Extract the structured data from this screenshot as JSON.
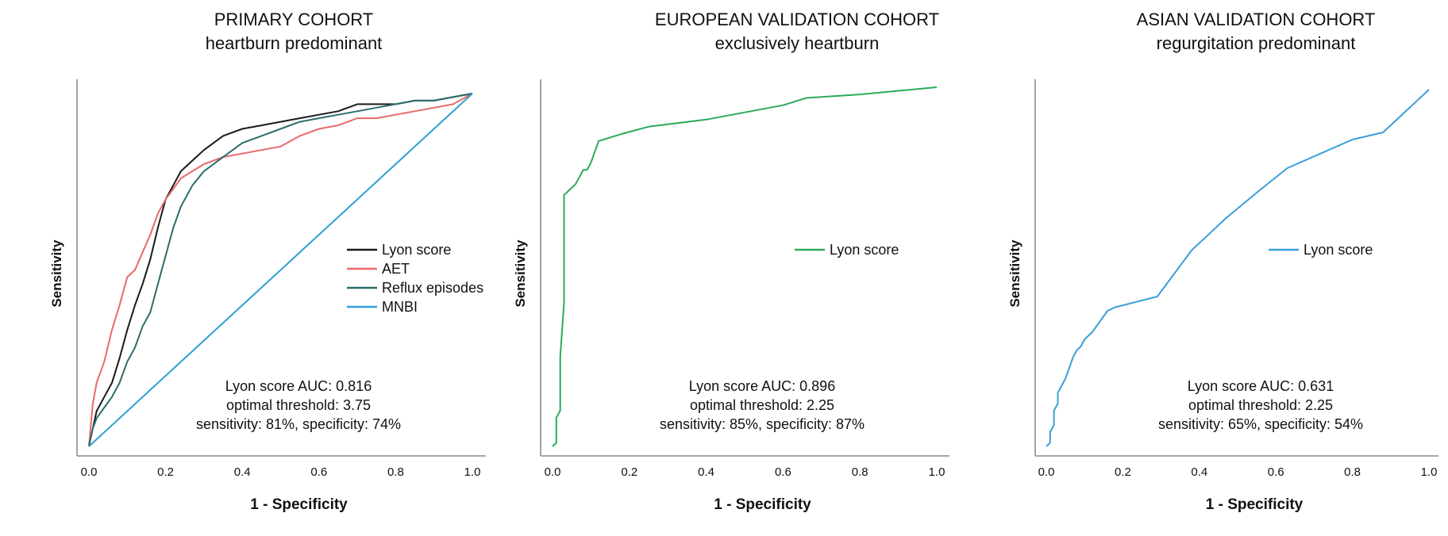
{
  "chart_data": [
    {
      "type": "line",
      "title": "PRIMARY COHORT",
      "subtitle": "heartburn predominant",
      "xlabel": "1 - Specificity",
      "ylabel": "Sensitivity",
      "xlim": [
        0,
        1
      ],
      "ylim": [
        0,
        1
      ],
      "xticks": [
        "0.0",
        "0.2",
        "0.4",
        "0.6",
        "0.8",
        "1.0"
      ],
      "grid": false,
      "legend_position": "right-middle",
      "series": [
        {
          "name": "Lyon score",
          "color": "#1a1a1a",
          "x": [
            0.0,
            0.01,
            0.02,
            0.04,
            0.06,
            0.08,
            0.1,
            0.12,
            0.14,
            0.16,
            0.18,
            0.2,
            0.22,
            0.24,
            0.27,
            0.3,
            0.35,
            0.4,
            0.45,
            0.5,
            0.55,
            0.6,
            0.65,
            0.7,
            0.75,
            0.8,
            0.85,
            0.9,
            0.95,
            1.0
          ],
          "y": [
            0.0,
            0.05,
            0.1,
            0.14,
            0.18,
            0.25,
            0.33,
            0.4,
            0.46,
            0.53,
            0.62,
            0.7,
            0.74,
            0.78,
            0.81,
            0.84,
            0.88,
            0.9,
            0.91,
            0.92,
            0.93,
            0.94,
            0.95,
            0.97,
            0.97,
            0.97,
            0.98,
            0.98,
            0.99,
            1.0
          ]
        },
        {
          "name": "AET",
          "color": "#e8696b",
          "x": [
            0.0,
            0.01,
            0.02,
            0.04,
            0.06,
            0.08,
            0.1,
            0.12,
            0.14,
            0.16,
            0.18,
            0.2,
            0.22,
            0.24,
            0.27,
            0.3,
            0.35,
            0.4,
            0.45,
            0.5,
            0.55,
            0.6,
            0.65,
            0.7,
            0.75,
            0.8,
            0.85,
            0.9,
            0.95,
            1.0
          ],
          "y": [
            0.0,
            0.12,
            0.18,
            0.24,
            0.33,
            0.4,
            0.48,
            0.5,
            0.55,
            0.6,
            0.66,
            0.7,
            0.73,
            0.76,
            0.78,
            0.8,
            0.82,
            0.83,
            0.84,
            0.85,
            0.88,
            0.9,
            0.91,
            0.93,
            0.93,
            0.94,
            0.95,
            0.96,
            0.97,
            1.0
          ]
        },
        {
          "name": "Reflux episodes",
          "color": "#2e6b6b",
          "x": [
            0.0,
            0.01,
            0.02,
            0.04,
            0.06,
            0.08,
            0.1,
            0.12,
            0.14,
            0.16,
            0.18,
            0.2,
            0.22,
            0.24,
            0.27,
            0.3,
            0.35,
            0.4,
            0.45,
            0.5,
            0.55,
            0.6,
            0.65,
            0.7,
            0.75,
            0.8,
            0.85,
            0.9,
            0.95,
            1.0
          ],
          "y": [
            0.0,
            0.05,
            0.08,
            0.11,
            0.14,
            0.18,
            0.24,
            0.28,
            0.34,
            0.38,
            0.46,
            0.54,
            0.62,
            0.68,
            0.74,
            0.78,
            0.82,
            0.86,
            0.88,
            0.9,
            0.92,
            0.93,
            0.94,
            0.95,
            0.96,
            0.97,
            0.98,
            0.98,
            0.99,
            1.0
          ]
        },
        {
          "name": "MNBI",
          "color": "#2f9fd4",
          "x": [
            0.0,
            1.0
          ],
          "y": [
            0.0,
            1.0
          ]
        }
      ],
      "annotation": [
        "Lyon score AUC: 0.816",
        "optimal threshold: 3.75",
        "sensitivity: 81%, specificity: 74%"
      ]
    },
    {
      "type": "line",
      "title": "EUROPEAN VALIDATION COHORT",
      "subtitle": "exclusively heartburn",
      "xlabel": "1 - Specificity",
      "ylabel": "Sensitivity",
      "xlim": [
        0,
        1
      ],
      "ylim": [
        0,
        1
      ],
      "xticks": [
        "0.0",
        "0.2",
        "0.4",
        "0.6",
        "0.8",
        "1.0"
      ],
      "grid": false,
      "legend_position": "right-middle",
      "series": [
        {
          "name": "Lyon score",
          "color": "#2aaa5a",
          "x": [
            0.0,
            0.01,
            0.01,
            0.02,
            0.02,
            0.03,
            0.03,
            0.04,
            0.05,
            0.06,
            0.07,
            0.08,
            0.09,
            0.1,
            0.12,
            0.18,
            0.25,
            0.4,
            0.6,
            0.66,
            0.8,
            1.0
          ],
          "y": [
            0.0,
            0.01,
            0.08,
            0.1,
            0.25,
            0.4,
            0.7,
            0.71,
            0.72,
            0.73,
            0.75,
            0.77,
            0.77,
            0.79,
            0.85,
            0.87,
            0.89,
            0.91,
            0.95,
            0.97,
            0.98,
            1.0
          ]
        }
      ],
      "annotation": [
        "Lyon score AUC: 0.896",
        "optimal threshold: 2.25",
        "sensitivity: 85%, specificity: 87%"
      ]
    },
    {
      "type": "line",
      "title": "ASIAN VALIDATION COHORT",
      "subtitle": "regurgitation predominant",
      "xlabel": "1 - Specificity",
      "ylabel": "Sensitivity",
      "xlim": [
        0,
        1
      ],
      "ylim": [
        0,
        1
      ],
      "xticks": [
        "0.0",
        "0.2",
        "0.4",
        "0.6",
        "0.8",
        "1.0"
      ],
      "grid": false,
      "legend_position": "right-middle",
      "series": [
        {
          "name": "Lyon score",
          "color": "#3a9fd8",
          "x": [
            0.0,
            0.01,
            0.01,
            0.02,
            0.02,
            0.03,
            0.03,
            0.04,
            0.05,
            0.06,
            0.07,
            0.08,
            0.09,
            0.1,
            0.12,
            0.14,
            0.16,
            0.18,
            0.29,
            0.38,
            0.47,
            0.56,
            0.63,
            0.8,
            0.88,
            1.0
          ],
          "y": [
            0.0,
            0.01,
            0.04,
            0.06,
            0.1,
            0.12,
            0.15,
            0.17,
            0.19,
            0.22,
            0.25,
            0.27,
            0.28,
            0.3,
            0.32,
            0.35,
            0.38,
            0.39,
            0.42,
            0.55,
            0.64,
            0.72,
            0.78,
            0.86,
            0.88,
            1.0
          ]
        }
      ],
      "annotation": [
        "Lyon score AUC: 0.631",
        "optimal threshold: 2.25",
        "sensitivity: 65%, specificity: 54%"
      ]
    }
  ]
}
